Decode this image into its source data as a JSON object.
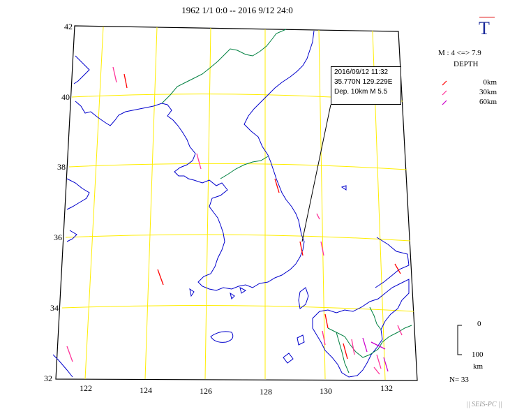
{
  "title": "1962 1/1 0:0 -- 2016 9/12 24:0",
  "axes": {
    "lat_labels": [
      "42",
      "40",
      "38",
      "36",
      "34",
      "32"
    ],
    "lon_labels": [
      "122",
      "124",
      "126",
      "128",
      "130",
      "132"
    ]
  },
  "popup": {
    "datetime": "2016/09/12 11:32",
    "location": "35.770N  129.229E",
    "depth_mag": "Dep. 10km    M 5.5"
  },
  "legend": {
    "mark": "T",
    "magnitude": "M : 4 <=> 7.9",
    "depth_title": "DEPTH",
    "depths": [
      {
        "label": "0km",
        "color": "#ff0000"
      },
      {
        "label": "30km",
        "color": "#ff3399"
      },
      {
        "label": "60km",
        "color": "#cc00cc"
      }
    ]
  },
  "scale": {
    "top": "0",
    "bottom": "100",
    "unit": "km"
  },
  "count": "N= 33",
  "credit": "|| SEIS-PC ||",
  "colors": {
    "grid": "#ffee00",
    "coast": "#0000cc",
    "border": "#008040",
    "frame": "#000000"
  }
}
